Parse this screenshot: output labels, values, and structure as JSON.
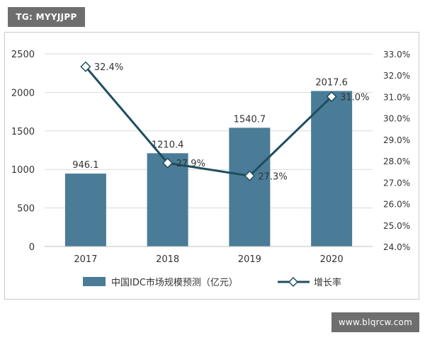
{
  "watermark_top": "TG: MYYJJPP",
  "watermark_bottom": "www.blqrcw.com",
  "chart_data": {
    "type": "bar",
    "categories": [
      "2017",
      "2018",
      "2019",
      "2020"
    ],
    "series": [
      {
        "name": "中国IDC市场规模预测（亿元）",
        "type": "bar",
        "axis": "left",
        "color": "#4a7c97",
        "values": [
          946.1,
          1210.4,
          1540.7,
          2017.6
        ],
        "labels": [
          "946.1",
          "1210.4",
          "1540.7",
          "2017.6"
        ]
      },
      {
        "name": "增长率",
        "type": "line",
        "axis": "right",
        "color": "#1f4e5f",
        "values": [
          32.4,
          27.9,
          27.3,
          31.0
        ],
        "labels": [
          "32.4%",
          "27.9%",
          "27.3%",
          "31.0%"
        ]
      }
    ],
    "y_left": {
      "ylim": [
        0,
        2500
      ],
      "ticks": [
        "0",
        "500",
        "1000",
        "1500",
        "2000",
        "2500"
      ]
    },
    "y_right": {
      "ylim": [
        24,
        33
      ],
      "ticks": [
        "24.0%",
        "25.0%",
        "26.0%",
        "27.0%",
        "28.0%",
        "29.0%",
        "30.0%",
        "31.0%",
        "32.0%",
        "33.0%"
      ]
    },
    "grid": true,
    "legend": "bottom"
  }
}
